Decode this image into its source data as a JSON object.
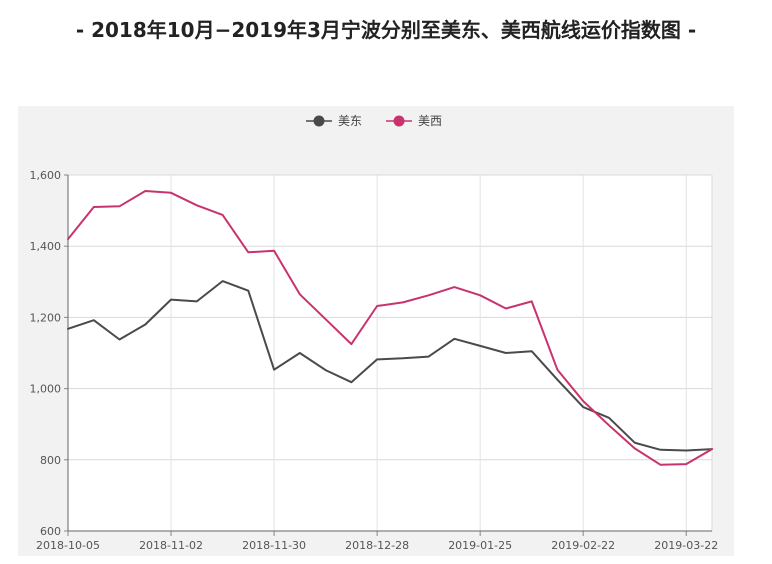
{
  "title": "- 2018年10月−2019年3月宁波分别至美东、美西航线运价指数图 -",
  "chart_data": {
    "type": "line",
    "title": "- 2018年10月−2019年3月宁波分别至美东、美西航线运价指数图 -",
    "xlabel": "",
    "ylabel": "",
    "x_tick_labels": [
      "2018-10-05",
      "2018-11-02",
      "2018-11-30",
      "2018-12-28",
      "2019-01-25",
      "2019-02-22",
      "2019-03-22"
    ],
    "x": [
      "2018-10-05",
      "2018-10-12",
      "2018-10-19",
      "2018-10-26",
      "2018-11-02",
      "2018-11-09",
      "2018-11-16",
      "2018-11-23",
      "2018-11-30",
      "2018-12-07",
      "2018-12-14",
      "2018-12-21",
      "2018-12-28",
      "2019-01-04",
      "2019-01-11",
      "2019-01-18",
      "2019-01-25",
      "2019-02-01",
      "2019-02-08",
      "2019-02-15",
      "2019-02-22",
      "2019-03-01",
      "2019-03-08",
      "2019-03-15",
      "2019-03-22",
      "2019-03-29"
    ],
    "ylim": [
      600,
      1600
    ],
    "y_ticks": [
      600,
      800,
      1000,
      1200,
      1400,
      1600
    ],
    "y_tick_labels": [
      "600",
      "800",
      "1,000",
      "1,200",
      "1,400",
      "1,600"
    ],
    "grid": true,
    "legend_position": "top-center",
    "series": [
      {
        "name": "美东",
        "color": "#4a4a4a",
        "values": [
          1168,
          1192,
          1138,
          1180,
          1250,
          1245,
          1302,
          1275,
          1053,
          1100,
          1052,
          1018,
          1082,
          1085,
          1090,
          1140,
          1120,
          1100,
          1105,
          1025,
          948,
          918,
          848,
          828,
          826,
          830
        ]
      },
      {
        "name": "美西",
        "color": "#c8336f",
        "values": [
          1420,
          1510,
          1512,
          1555,
          1550,
          1515,
          1488,
          1383,
          1387,
          1265,
          1195,
          1125,
          1232,
          1242,
          1262,
          1285,
          1262,
          1225,
          1245,
          1053,
          965,
          897,
          832,
          786,
          788,
          830
        ]
      }
    ]
  }
}
